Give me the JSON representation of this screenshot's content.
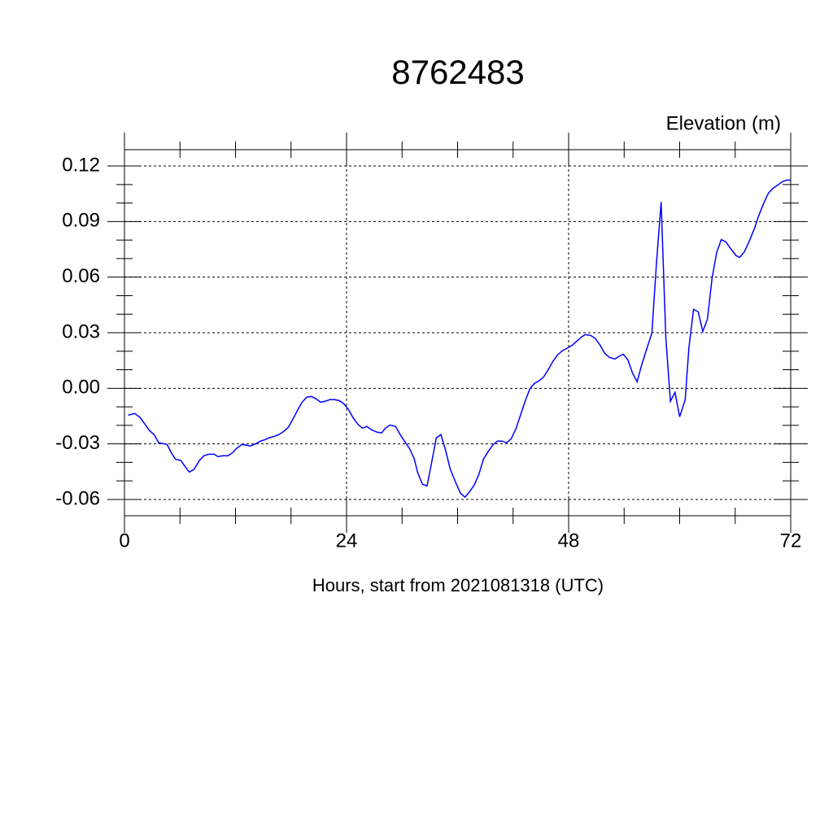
{
  "chart_data": {
    "type": "line",
    "title": "8762483",
    "subtitle": "Elevation (m)",
    "x_label": "Hours, start from 2021081318 (UTC)",
    "xlim": [
      0,
      72
    ],
    "xticks": [
      0,
      24,
      48,
      72
    ],
    "xminorticks": [
      6,
      12,
      18,
      30,
      36,
      42,
      54,
      60,
      66
    ],
    "ylim": [
      -0.0688,
      0.1288
    ],
    "yticks": [
      {
        "value": 0.12,
        "label": "0.12"
      },
      {
        "value": 0.09,
        "label": "0.09"
      },
      {
        "value": 0.06,
        "label": "0.06"
      },
      {
        "value": 0.03,
        "label": "0.03"
      },
      {
        "value": 0,
        "label": "0.00"
      },
      {
        "value": -0.03,
        "label": "-0.03"
      },
      {
        "value": -0.06,
        "label": "-0.06"
      }
    ],
    "yminorticks": [
      -0.05,
      -0.04,
      -0.02,
      -0.01,
      0.01,
      0.02,
      0.04,
      0.05,
      0.07,
      0.08,
      0.1,
      0.11
    ],
    "grid": true,
    "x": [
      0.4,
      1.1,
      1.7,
      2.2,
      2.7,
      3.2,
      3.7,
      4.6,
      5.1,
      5.5,
      6.1,
      6.6,
      7.0,
      7.5,
      8.1,
      8.6,
      9.1,
      9.7,
      10.1,
      10.6,
      11.2,
      11.7,
      12.1,
      12.7,
      13.2,
      13.6,
      14.2,
      14.7,
      15.2,
      15.6,
      16.2,
      16.7,
      17.2,
      17.7,
      18.2,
      18.7,
      19.2,
      19.7,
      20.2,
      20.7,
      21.2,
      21.7,
      22.2,
      22.7,
      23.2,
      23.7,
      24.2,
      24.7,
      25.2,
      25.7,
      26.2,
      26.7,
      27.3,
      27.8,
      28.2,
      28.7,
      29.3,
      29.8,
      30.2,
      30.8,
      31.3,
      31.7,
      32.2,
      32.7,
      33.2,
      33.7,
      34.2,
      34.7,
      35.2,
      35.8,
      36.3,
      36.8,
      37.3,
      37.8,
      38.3,
      38.8,
      39.3,
      39.8,
      40.3,
      40.8,
      41.3,
      41.8,
      42.3,
      42.8,
      43.3,
      43.8,
      44.3,
      44.8,
      45.3,
      45.8,
      46.3,
      46.8,
      47.3,
      47.8,
      48.4,
      48.9,
      49.4,
      49.8,
      50.4,
      50.9,
      51.4,
      51.9,
      52.4,
      53.0,
      53.4,
      53.9,
      54.4,
      54.9,
      55.4,
      55.9,
      56.4,
      57.0,
      57.5,
      58.0,
      58.5,
      59.0,
      59.5,
      60.0,
      60.6,
      61.0,
      61.5,
      62.0,
      62.5,
      63.0,
      63.5,
      64.0,
      64.5,
      65.0,
      65.5,
      66.1,
      66.5,
      67.0,
      67.6,
      68.1,
      68.5,
      69.1,
      69.6,
      70.1,
      70.6,
      71.1,
      71.6,
      72.0
    ],
    "series": [
      {
        "name": "Elevation",
        "color": "#0000ff",
        "values": [
          -0.0145,
          -0.0136,
          -0.0158,
          -0.0193,
          -0.0228,
          -0.025,
          -0.0294,
          -0.0303,
          -0.0351,
          -0.0382,
          -0.039,
          -0.0426,
          -0.0452,
          -0.0439,
          -0.039,
          -0.0364,
          -0.0356,
          -0.0356,
          -0.0369,
          -0.0364,
          -0.0364,
          -0.0347,
          -0.0325,
          -0.0303,
          -0.0307,
          -0.0312,
          -0.0299,
          -0.0285,
          -0.0277,
          -0.0268,
          -0.0259,
          -0.025,
          -0.0233,
          -0.0211,
          -0.0167,
          -0.0119,
          -0.0075,
          -0.0048,
          -0.0044,
          -0.0057,
          -0.0075,
          -0.007,
          -0.0061,
          -0.0061,
          -0.0066,
          -0.0083,
          -0.0114,
          -0.0158,
          -0.0193,
          -0.0215,
          -0.0206,
          -0.0224,
          -0.0237,
          -0.0241,
          -0.0215,
          -0.0198,
          -0.0206,
          -0.025,
          -0.0281,
          -0.0325,
          -0.0378,
          -0.0457,
          -0.0518,
          -0.0527,
          -0.04,
          -0.0268,
          -0.025,
          -0.0334,
          -0.0435,
          -0.0509,
          -0.0566,
          -0.0588,
          -0.0558,
          -0.0522,
          -0.0465,
          -0.0382,
          -0.0342,
          -0.0307,
          -0.0285,
          -0.0285,
          -0.0294,
          -0.0272,
          -0.0219,
          -0.0145,
          -0.007,
          -0.0004,
          0.0026,
          0.004,
          0.0061,
          0.0101,
          0.0145,
          0.018,
          0.0202,
          0.0215,
          0.0233,
          0.0255,
          0.0277,
          0.029,
          0.0285,
          0.0268,
          0.0233,
          0.0189,
          0.0167,
          0.0158,
          0.0171,
          0.0184,
          0.0154,
          0.0083,
          0.0035,
          0.0127,
          0.0206,
          0.0299,
          0.068,
          0.1005,
          0.0277,
          -0.007,
          -0.0022,
          -0.0154,
          -0.0061,
          0.0219,
          0.0426,
          0.0413,
          0.0307,
          0.0373,
          0.0593,
          0.0733,
          0.0803,
          0.079,
          0.0755,
          0.0716,
          0.0707,
          0.0737,
          0.0803,
          0.0865,
          0.0926,
          0.1001,
          0.1054,
          0.108,
          0.1097,
          0.1115,
          0.1124,
          0.1124
        ]
      }
    ]
  }
}
